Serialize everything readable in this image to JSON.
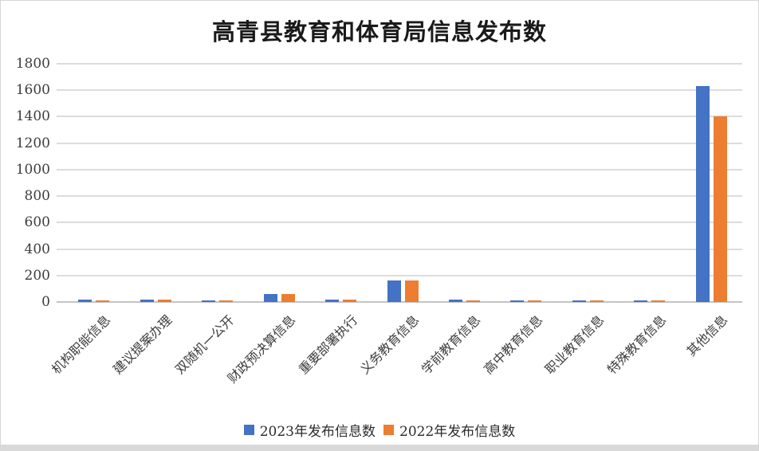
{
  "frame": {
    "background": "#ffffff",
    "border_color": "#d6d6d6",
    "bottom_bar_color": "#d9d9d9"
  },
  "chart_data": {
    "type": "bar",
    "title": "高青县教育和体育局信息发布数",
    "categories": [
      "机构职能信息",
      "建议提案办理",
      "双随机一公开",
      "财政预决算信息",
      "重要部署执行",
      "义务教育信息",
      "学前教育信息",
      "高中教育信息",
      "职业教育信息",
      "特殊教育信息",
      "其他信息"
    ],
    "series": [
      {
        "name": "2023年发布信息数",
        "color": "#4472C4",
        "values": [
          20,
          20,
          12,
          60,
          20,
          160,
          20,
          12,
          12,
          12,
          1630
        ]
      },
      {
        "name": "2022年发布信息数",
        "color": "#ED7D31",
        "values": [
          12,
          18,
          10,
          60,
          20,
          160,
          12,
          12,
          12,
          12,
          1400
        ]
      }
    ],
    "xlabel": "",
    "ylabel": "",
    "ylim": [
      0,
      1800
    ],
    "yticks": [
      0,
      200,
      400,
      600,
      800,
      1000,
      1200,
      1400,
      1600,
      1800
    ],
    "grid": true,
    "legend_position": "bottom",
    "gridline_color": "#dcdcdc",
    "axis_color": "#c4c4c4",
    "text_color": "#3d3d3d"
  }
}
